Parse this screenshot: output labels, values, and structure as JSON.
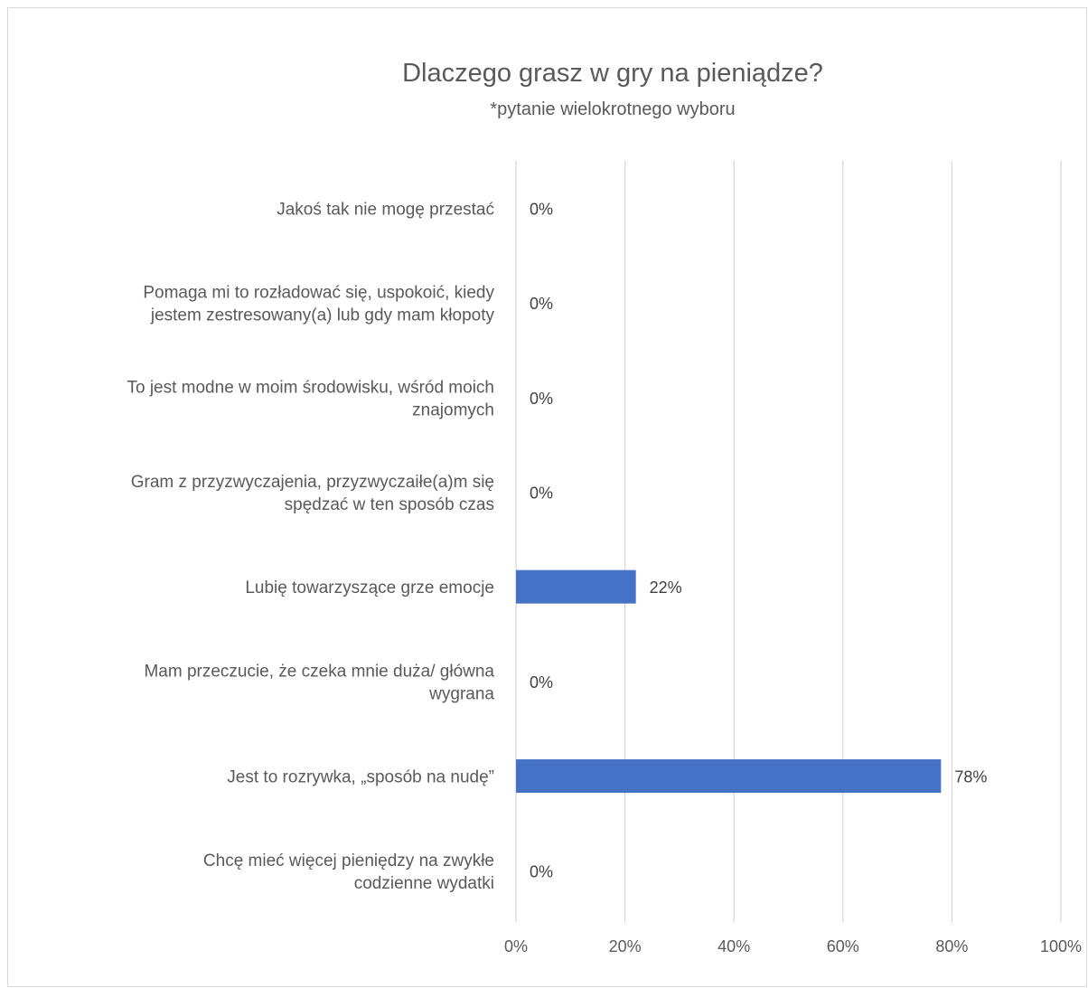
{
  "chart_data": {
    "type": "bar",
    "orientation": "horizontal",
    "title": "Dlaczego grasz w gry na pieniądze?",
    "subtitle": "*pytanie wielokrotnego wyboru",
    "categories": [
      [
        "Jakoś tak nie mogę przestać"
      ],
      [
        "Pomaga mi to rozładować się, uspokoić, kiedy",
        "jestem zestresowany(a) lub gdy mam kłopoty"
      ],
      [
        "To jest modne w moim środowisku, wśród moich",
        "znajomych"
      ],
      [
        "Gram z przyzwyczajenia, przyzwyczaiłe(a)m się",
        "spędzać w ten sposób czas"
      ],
      [
        "Lubię towarzyszące grze emocje"
      ],
      [
        "Mam przeczucie, że czeka mnie duża/ główna",
        "wygrana"
      ],
      [
        "Jest to rozrywka, „sposób na nudę”"
      ],
      [
        "Chcę mieć więcej pieniędzy na zwykłe",
        "codzienne wydatki"
      ]
    ],
    "values": [
      0,
      0,
      0,
      0,
      22,
      0,
      78,
      0
    ],
    "data_labels": [
      "0%",
      "0%",
      "0%",
      "0%",
      "22%",
      "0%",
      "78%",
      "0%"
    ],
    "xlim": [
      0,
      100
    ],
    "x_ticks": [
      0,
      20,
      40,
      60,
      80,
      100
    ],
    "x_tick_labels": [
      "0%",
      "20%",
      "40%",
      "60%",
      "80%",
      "100%"
    ],
    "bar_color": "#4472C4",
    "grid": true,
    "legend": "none"
  }
}
